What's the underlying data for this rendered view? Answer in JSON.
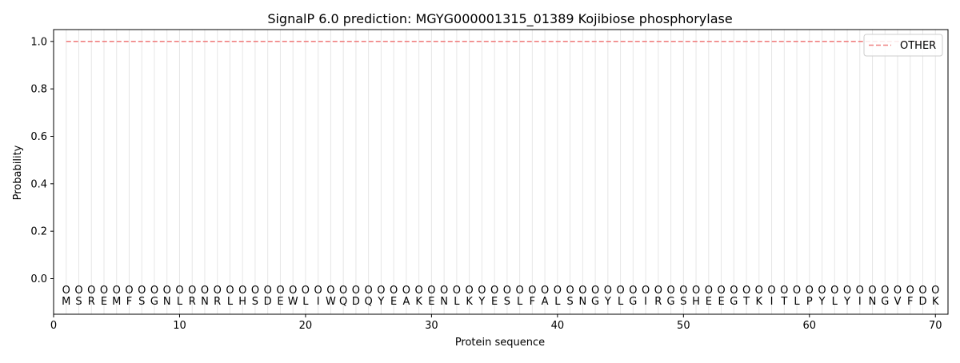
{
  "chart_data": {
    "type": "line",
    "title": "SignalP 6.0 prediction: MGYG000001315_01389 Kojibiose phosphorylase",
    "xlabel": "Protein sequence",
    "ylabel": "Probability",
    "xlim": [
      0,
      71
    ],
    "ylim": [
      -0.15,
      1.05
    ],
    "x_ticks": [
      0,
      10,
      20,
      30,
      40,
      50,
      60,
      70
    ],
    "y_ticks": [
      0.0,
      0.2,
      0.4,
      0.6,
      0.8,
      1.0
    ],
    "x_tick_labels": [
      "0",
      "10",
      "20",
      "30",
      "40",
      "50",
      "60",
      "70"
    ],
    "y_tick_labels": [
      "0.0",
      "0.2",
      "0.4",
      "0.6",
      "0.8",
      "1.0"
    ],
    "grid": "vertical lines at each residue",
    "legend": {
      "placement": "top-right",
      "entries": [
        "OTHER"
      ]
    },
    "series": [
      {
        "name": "OTHER",
        "style": "dashed",
        "color": "#f08080",
        "x_start": 1,
        "x_end": 70,
        "value": 1.0
      }
    ],
    "sequence": [
      "M",
      "S",
      "R",
      "E",
      "M",
      "F",
      "S",
      "G",
      "N",
      "L",
      "R",
      "N",
      "R",
      "L",
      "H",
      "S",
      "D",
      "E",
      "W",
      "L",
      "I",
      "W",
      "Q",
      "D",
      "Q",
      "Y",
      "E",
      "A",
      "K",
      "E",
      "N",
      "L",
      "K",
      "Y",
      "E",
      "S",
      "L",
      "F",
      "A",
      "L",
      "S",
      "N",
      "G",
      "Y",
      "L",
      "G",
      "I",
      "R",
      "G",
      "S",
      "H",
      "E",
      "E",
      "G",
      "T",
      "K",
      "I",
      "T",
      "L",
      "P",
      "Y",
      "L",
      "Y",
      "I",
      "N",
      "G",
      "V",
      "F",
      "D",
      "K"
    ],
    "predicted_label": "O",
    "predicted_label_y": -0.045
  }
}
